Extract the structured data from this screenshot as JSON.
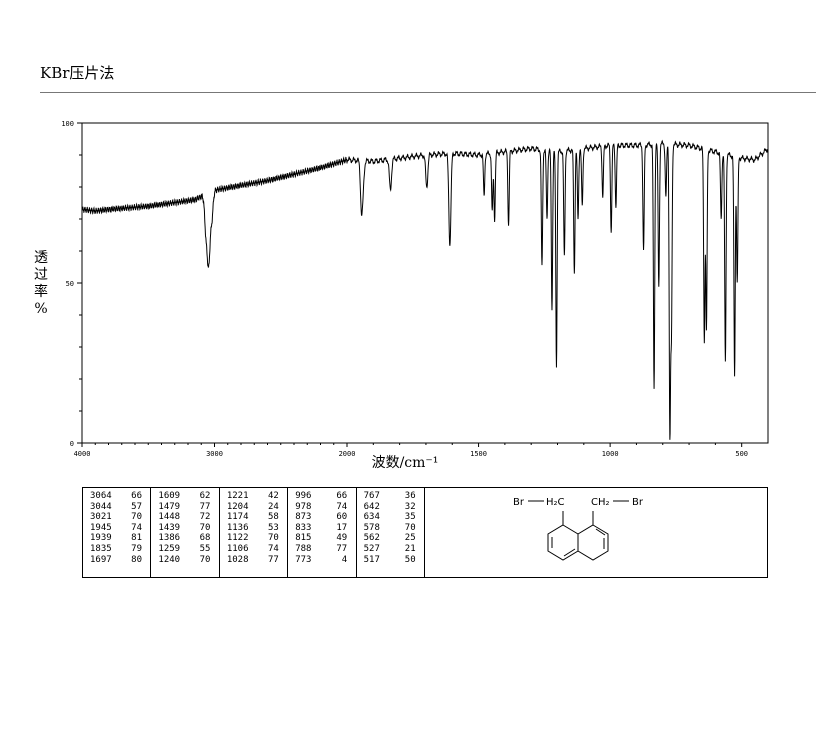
{
  "header": {
    "method": "KBr压片法"
  },
  "chart_data": {
    "type": "line",
    "title": "",
    "xlabel": "波数/cm⁻¹",
    "ylabel": "透过率%",
    "ylabel_lines": [
      "透",
      "过",
      "率",
      "%"
    ],
    "xlim": [
      4000,
      400
    ],
    "ylim": [
      0,
      100
    ],
    "xticks": [
      4000,
      3000,
      2000,
      1500,
      1000,
      500
    ],
    "xtick_labels": [
      "4000",
      "3000",
      "2000",
      "1500",
      "1000",
      "500"
    ],
    "yticks": [
      0,
      50,
      100
    ],
    "ytick_labels": [
      "0",
      "50",
      "100"
    ],
    "grid": false,
    "baseline": [
      [
        4000,
        73
      ],
      [
        3900,
        72.5
      ],
      [
        3800,
        73
      ],
      [
        3500,
        74
      ],
      [
        3150,
        76
      ],
      [
        3000,
        79
      ],
      [
        2800,
        80.5
      ],
      [
        2600,
        82
      ],
      [
        2400,
        84
      ],
      [
        2200,
        86
      ],
      [
        2000,
        88.5
      ],
      [
        1900,
        88
      ],
      [
        1800,
        89
      ],
      [
        1700,
        90
      ],
      [
        1600,
        90.5
      ],
      [
        1500,
        90
      ],
      [
        1400,
        91
      ],
      [
        1300,
        92
      ],
      [
        1200,
        91
      ],
      [
        1100,
        92
      ],
      [
        1000,
        93
      ],
      [
        900,
        93
      ],
      [
        800,
        93.5
      ],
      [
        700,
        93
      ],
      [
        600,
        91
      ],
      [
        500,
        89
      ],
      [
        450,
        88.5
      ],
      [
        400,
        92
      ]
    ],
    "peaks": [
      {
        "x": 3064,
        "y": 66
      },
      {
        "x": 3044,
        "y": 57
      },
      {
        "x": 3021,
        "y": 70
      },
      {
        "x": 1945,
        "y": 74
      },
      {
        "x": 1939,
        "y": 81
      },
      {
        "x": 1835,
        "y": 79
      },
      {
        "x": 1697,
        "y": 80
      },
      {
        "x": 1609,
        "y": 62
      },
      {
        "x": 1479,
        "y": 77
      },
      {
        "x": 1448,
        "y": 72
      },
      {
        "x": 1439,
        "y": 70
      },
      {
        "x": 1386,
        "y": 68
      },
      {
        "x": 1259,
        "y": 55
      },
      {
        "x": 1240,
        "y": 70
      },
      {
        "x": 1221,
        "y": 42
      },
      {
        "x": 1204,
        "y": 24
      },
      {
        "x": 1174,
        "y": 58
      },
      {
        "x": 1136,
        "y": 53
      },
      {
        "x": 1122,
        "y": 70
      },
      {
        "x": 1106,
        "y": 74
      },
      {
        "x": 1028,
        "y": 77
      },
      {
        "x": 996,
        "y": 66
      },
      {
        "x": 978,
        "y": 74
      },
      {
        "x": 873,
        "y": 60
      },
      {
        "x": 833,
        "y": 17
      },
      {
        "x": 815,
        "y": 49
      },
      {
        "x": 788,
        "y": 77
      },
      {
        "x": 773,
        "y": 4
      },
      {
        "x": 767,
        "y": 36
      },
      {
        "x": 642,
        "y": 32
      },
      {
        "x": 634,
        "y": 35
      },
      {
        "x": 578,
        "y": 70
      },
      {
        "x": 562,
        "y": 25
      },
      {
        "x": 527,
        "y": 21
      },
      {
        "x": 517,
        "y": 50
      }
    ]
  },
  "peak_table": [
    [
      [
        "3064",
        "66"
      ],
      [
        "3044",
        "57"
      ],
      [
        "3021",
        "70"
      ],
      [
        "1945",
        "74"
      ],
      [
        "1939",
        "81"
      ],
      [
        "1835",
        "79"
      ],
      [
        "1697",
        "80"
      ]
    ],
    [
      [
        "1609",
        "62"
      ],
      [
        "1479",
        "77"
      ],
      [
        "1448",
        "72"
      ],
      [
        "1439",
        "70"
      ],
      [
        "1386",
        "68"
      ],
      [
        "1259",
        "55"
      ],
      [
        "1240",
        "70"
      ]
    ],
    [
      [
        "1221",
        "42"
      ],
      [
        "1204",
        "24"
      ],
      [
        "1174",
        "58"
      ],
      [
        "1136",
        "53"
      ],
      [
        "1122",
        "70"
      ],
      [
        "1106",
        "74"
      ],
      [
        "1028",
        "77"
      ]
    ],
    [
      [
        "996",
        "66"
      ],
      [
        "978",
        "74"
      ],
      [
        "873",
        "60"
      ],
      [
        "833",
        "17"
      ],
      [
        "815",
        "49"
      ],
      [
        "788",
        "77"
      ],
      [
        "773",
        "4"
      ]
    ],
    [
      [
        "767",
        "36"
      ],
      [
        "642",
        "32"
      ],
      [
        "634",
        "35"
      ],
      [
        "578",
        "70"
      ],
      [
        "562",
        "25"
      ],
      [
        "527",
        "21"
      ],
      [
        "517",
        "50"
      ]
    ]
  ],
  "structure": {
    "left_br": "Br",
    "left_ch2": "H₂C",
    "right_ch2": "CH₂",
    "right_br": "Br"
  }
}
